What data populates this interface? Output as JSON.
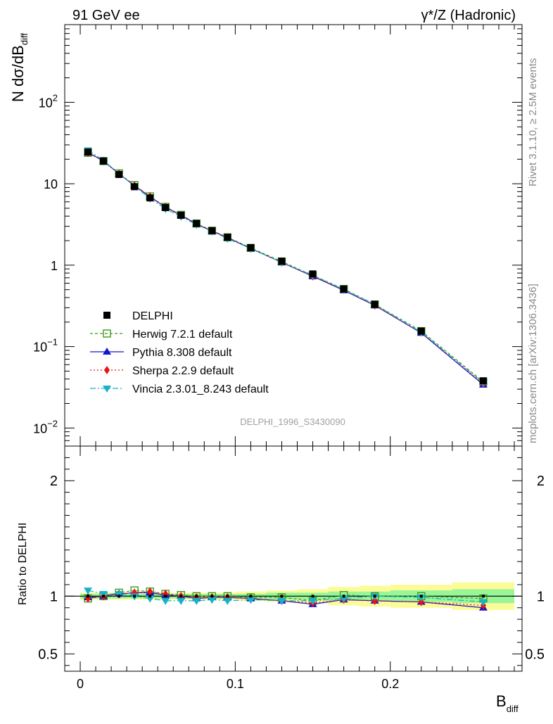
{
  "header": {
    "left_label": "91 GeV ee",
    "right_label": "γ*/Z (Hadronic)"
  },
  "side_labels": {
    "rivet": "Rivet 3.1.10, ≥ 2.5M events",
    "mcplots": "mcplots.cern.ch [arXiv:1306.3436]"
  },
  "analysis_id": "DELPHI_1996_S3430090",
  "colors": {
    "data": "#000000",
    "herwig": "#3d9a1e",
    "pythia": "#1515cc",
    "sherpa": "#ee1111",
    "vincia": "#18b2c8",
    "band_inner": "#98f598",
    "band_outer": "#fbfb98"
  },
  "chart_data": [
    {
      "type": "line",
      "panel": "main",
      "ylabel_main": "N dσ/dB",
      "ylabel_sub": "diff",
      "yscale": "log",
      "ylim": [
        0.006,
        900
      ],
      "xlim": [
        -0.01,
        0.285
      ],
      "x": [
        0.005,
        0.015,
        0.025,
        0.035,
        0.045,
        0.055,
        0.065,
        0.075,
        0.085,
        0.095,
        0.11,
        0.13,
        0.15,
        0.17,
        0.19,
        0.22,
        0.26
      ],
      "y_tick_labels": [
        "10",
        "10",
        "1",
        "10",
        "10"
      ],
      "y_tick_exponents": [
        "2",
        "",
        "",
        "−1",
        "−2"
      ],
      "legend_position": "center-left",
      "series": [
        {
          "name": "DELPHI",
          "style": "data",
          "marker": "square-filled",
          "values": [
            24.5,
            19.0,
            13.0,
            9.2,
            6.7,
            5.1,
            4.1,
            3.25,
            2.65,
            2.2,
            1.64,
            1.12,
            0.78,
            0.51,
            0.33,
            0.155,
            0.038
          ]
        },
        {
          "name": "Herwig 7.2.1 default",
          "style": "herwig",
          "marker": "square-open",
          "values": [
            24.0,
            19.0,
            13.4,
            9.6,
            7.0,
            5.2,
            4.15,
            3.25,
            2.65,
            2.2,
            1.63,
            1.11,
            0.75,
            0.51,
            0.33,
            0.155,
            0.037
          ]
        },
        {
          "name": "Pythia 8.308 default",
          "style": "pythia",
          "marker": "triangle-up",
          "values": [
            24.3,
            19.0,
            13.2,
            9.5,
            6.9,
            5.15,
            4.1,
            3.2,
            2.63,
            2.18,
            1.6,
            1.08,
            0.73,
            0.49,
            0.32,
            0.147,
            0.034
          ]
        },
        {
          "name": "Sherpa 2.2.9 default",
          "style": "sherpa",
          "marker": "diamond",
          "values": [
            24.0,
            19.0,
            13.3,
            9.5,
            7.0,
            5.2,
            4.12,
            3.22,
            2.64,
            2.19,
            1.6,
            1.08,
            0.73,
            0.5,
            0.32,
            0.149,
            0.035
          ]
        },
        {
          "name": "Vincia 2.3.01_8.243 default",
          "style": "vincia",
          "marker": "triangle-down",
          "values": [
            25.8,
            19.4,
            13.3,
            9.3,
            6.6,
            4.9,
            3.95,
            3.15,
            2.6,
            2.12,
            1.6,
            1.08,
            0.75,
            0.5,
            0.33,
            0.15,
            0.036
          ]
        }
      ]
    },
    {
      "type": "line",
      "panel": "ratio",
      "ylabel": "Ratio to DELPHI",
      "xlabel_main": "B",
      "xlabel_sub": "diff",
      "ylim": [
        0.35,
        2.3
      ],
      "xlim": [
        -0.01,
        0.285
      ],
      "x_ticks": [
        0,
        0.1,
        0.2
      ],
      "x_tick_labels": [
        "0",
        "0.1",
        "0.2"
      ],
      "y_ticks": [
        0.5,
        1,
        2
      ],
      "y_tick_labels": [
        "0.5",
        "1",
        "2"
      ],
      "x": [
        0.005,
        0.015,
        0.025,
        0.035,
        0.045,
        0.055,
        0.065,
        0.075,
        0.085,
        0.095,
        0.11,
        0.13,
        0.15,
        0.17,
        0.19,
        0.22,
        0.26
      ],
      "bin_edges": [
        0.0,
        0.01,
        0.02,
        0.03,
        0.04,
        0.05,
        0.06,
        0.07,
        0.08,
        0.09,
        0.1,
        0.12,
        0.14,
        0.16,
        0.18,
        0.2,
        0.24,
        0.28
      ],
      "band_inner": [
        0.02,
        0.02,
        0.02,
        0.02,
        0.02,
        0.02,
        0.02,
        0.02,
        0.02,
        0.02,
        0.02,
        0.03,
        0.03,
        0.04,
        0.04,
        0.05,
        0.06
      ],
      "band_outer": [
        0.03,
        0.03,
        0.03,
        0.03,
        0.03,
        0.03,
        0.03,
        0.03,
        0.03,
        0.03,
        0.04,
        0.05,
        0.06,
        0.08,
        0.09,
        0.1,
        0.12
      ],
      "series": [
        {
          "name": "Herwig 7.2.1 default",
          "style": "herwig",
          "marker": "square-open",
          "values": [
            0.98,
            1.0,
            1.03,
            1.05,
            1.04,
            1.02,
            1.01,
            1.0,
            1.0,
            1.0,
            0.99,
            0.99,
            0.96,
            1.01,
            1.0,
            1.0,
            0.98
          ]
        },
        {
          "name": "Pythia 8.308 default",
          "style": "pythia",
          "marker": "triangle-up",
          "values": [
            0.99,
            1.0,
            1.02,
            1.03,
            1.03,
            1.01,
            1.0,
            0.98,
            0.99,
            0.99,
            0.98,
            0.96,
            0.93,
            0.97,
            0.96,
            0.95,
            0.9
          ]
        },
        {
          "name": "Sherpa 2.2.9 default",
          "style": "sherpa",
          "marker": "diamond",
          "values": [
            0.98,
            1.0,
            1.02,
            1.03,
            1.04,
            1.02,
            1.0,
            0.99,
            0.99,
            0.99,
            0.98,
            0.96,
            0.94,
            0.97,
            0.96,
            0.95,
            0.92
          ]
        },
        {
          "name": "Vincia 2.3.01_8.243 default",
          "style": "vincia",
          "marker": "triangle-down",
          "values": [
            1.05,
            1.02,
            1.02,
            1.0,
            0.98,
            0.96,
            0.96,
            0.96,
            0.97,
            0.96,
            0.97,
            0.96,
            0.96,
            0.98,
            1.0,
            0.99,
            0.95
          ]
        }
      ]
    }
  ]
}
